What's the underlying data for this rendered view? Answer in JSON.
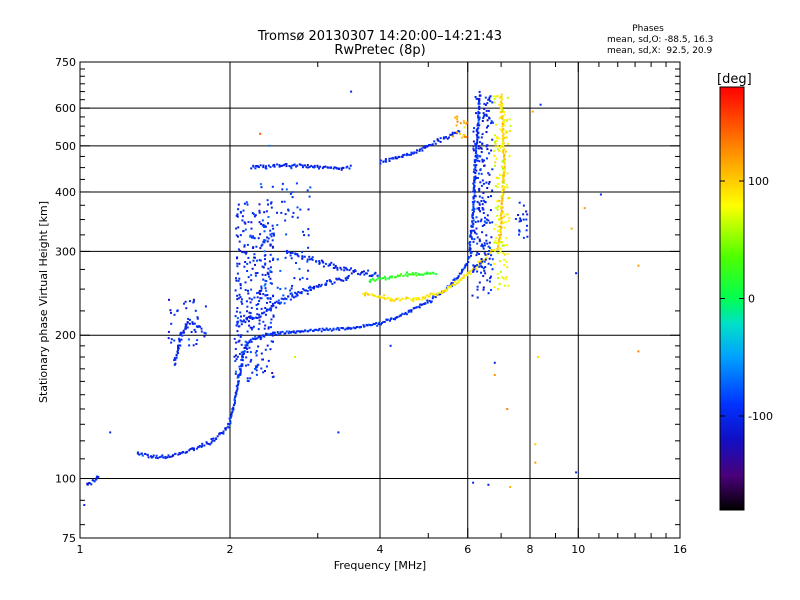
{
  "chart_data": {
    "type": "scatter",
    "title": "Tromsø 20130307 14:20:00–14:21:43",
    "subtitle": "RwPretec (8p)",
    "xlabel": "Frequency [MHz]",
    "ylabel": "Stationary phase Virtual Height [km]",
    "x_scale": "log",
    "y_scale": "log",
    "xlim": [
      1,
      16
    ],
    "ylim": [
      75,
      750
    ],
    "x_ticks": [
      1,
      2,
      4,
      6,
      8,
      10,
      16
    ],
    "y_ticks": [
      75,
      100,
      200,
      300,
      400,
      500,
      600,
      750
    ],
    "grid": true,
    "phase_info": {
      "title": "Phases",
      "line1": "mean, sd,O: -88.5, 16.3",
      "line2": "mean, sd,X:  92.5, 20.9"
    },
    "colorbar": {
      "label": "[deg]",
      "ticks": [
        100,
        0,
        -100
      ],
      "range": [
        -180,
        180
      ],
      "colormap": "rainbow"
    },
    "traces": [
      {
        "kind": "curve",
        "phase": -100,
        "jitter": 0.012,
        "points": [
          [
            1.03,
            97
          ],
          [
            1.07,
            99
          ],
          [
            1.09,
            101
          ]
        ]
      },
      {
        "kind": "curve",
        "phase": -100,
        "jitter": 0.015,
        "points": [
          [
            1.3,
            113
          ],
          [
            1.4,
            111
          ],
          [
            1.5,
            111
          ],
          [
            1.6,
            113
          ],
          [
            1.7,
            116
          ],
          [
            1.8,
            118
          ],
          [
            1.9,
            123
          ],
          [
            1.98,
            128
          ]
        ]
      },
      {
        "kind": "curve",
        "phase": -95,
        "jitter": 0.012,
        "points": [
          [
            1.98,
            128
          ],
          [
            2.03,
            140
          ],
          [
            2.08,
            160
          ],
          [
            2.13,
            185
          ],
          [
            2.2,
            195
          ],
          [
            2.35,
            200
          ],
          [
            2.6,
            203
          ],
          [
            3.0,
            205
          ],
          [
            3.5,
            207
          ],
          [
            4.0,
            212
          ],
          [
            4.5,
            222
          ],
          [
            5.0,
            235
          ],
          [
            5.5,
            252
          ],
          [
            5.8,
            270
          ],
          [
            6.0,
            285
          ],
          [
            6.1,
            300
          ]
        ]
      },
      {
        "kind": "curve",
        "phase": -100,
        "jitter": 0.02,
        "points": [
          [
            2.05,
            210
          ],
          [
            2.3,
            220
          ],
          [
            2.6,
            240
          ],
          [
            3.0,
            255
          ],
          [
            3.5,
            265
          ]
        ]
      },
      {
        "kind": "curve",
        "phase": 90,
        "jitter": 0.014,
        "points": [
          [
            3.7,
            245
          ],
          [
            4.2,
            238
          ],
          [
            4.8,
            238
          ],
          [
            5.4,
            248
          ],
          [
            5.9,
            265
          ],
          [
            6.4,
            285
          ],
          [
            6.8,
            305
          ]
        ]
      },
      {
        "kind": "curve",
        "phase": 20,
        "jitter": 0.015,
        "points": [
          [
            3.8,
            260
          ],
          [
            4.5,
            268
          ],
          [
            5.2,
            270
          ]
        ]
      },
      {
        "kind": "curve",
        "phase": -100,
        "jitter": 0.015,
        "points": [
          [
            2.2,
            450
          ],
          [
            2.5,
            455
          ],
          [
            3.2,
            450
          ],
          [
            3.5,
            448
          ]
        ]
      },
      {
        "kind": "curve",
        "phase": -100,
        "jitter": 0.015,
        "points": [
          [
            4.0,
            460
          ],
          [
            4.6,
            480
          ],
          [
            5.2,
            510
          ],
          [
            5.8,
            540
          ]
        ]
      },
      {
        "kind": "curve",
        "phase": -95,
        "jitter": 0.012,
        "points": [
          [
            6.05,
            300
          ],
          [
            6.15,
            360
          ],
          [
            6.2,
            450
          ],
          [
            6.3,
            560
          ],
          [
            6.35,
            650
          ]
        ]
      },
      {
        "kind": "curve",
        "phase": 100,
        "jitter": 0.012,
        "points": [
          [
            7.0,
            640
          ],
          [
            7.05,
            560
          ],
          [
            7.1,
            460
          ],
          [
            7.05,
            400
          ],
          [
            7.0,
            340
          ],
          [
            6.9,
            300
          ]
        ]
      },
      {
        "kind": "curve",
        "phase": -100,
        "jitter": 0.015,
        "points": [
          [
            1.55,
            175
          ],
          [
            1.6,
            200
          ],
          [
            1.65,
            215
          ],
          [
            1.75,
            205
          ]
        ]
      },
      {
        "kind": "curve",
        "phase": -100,
        "jitter": 0.02,
        "points": [
          [
            2.6,
            300
          ],
          [
            3.0,
            285
          ],
          [
            3.5,
            272
          ],
          [
            4.0,
            268
          ]
        ]
      },
      {
        "kind": "cluster",
        "phase": -100,
        "spread": 0.03,
        "count": 300,
        "x_range": [
          2.05,
          2.45
        ],
        "y_range": [
          160,
          380
        ]
      },
      {
        "kind": "cluster",
        "phase": -90,
        "spread": 0.03,
        "count": 90,
        "x_range": [
          2.3,
          2.9
        ],
        "y_range": [
          230,
          420
        ]
      },
      {
        "kind": "cluster",
        "phase": -100,
        "spread": 0.02,
        "count": 220,
        "x_range": [
          6.15,
          6.75
        ],
        "y_range": [
          240,
          640
        ]
      },
      {
        "kind": "cluster",
        "phase": 80,
        "spread": 0.02,
        "count": 140,
        "x_range": [
          6.75,
          7.3
        ],
        "y_range": [
          250,
          640
        ]
      },
      {
        "kind": "cluster",
        "phase": -100,
        "spread": 0.02,
        "count": 40,
        "x_range": [
          1.5,
          1.8
        ],
        "y_range": [
          190,
          240
        ]
      },
      {
        "kind": "cluster",
        "phase": -100,
        "spread": 0.02,
        "count": 20,
        "x_range": [
          7.5,
          7.9
        ],
        "y_range": [
          320,
          380
        ]
      },
      {
        "kind": "cluster",
        "phase": 110,
        "spread": 0.03,
        "count": 20,
        "x_range": [
          5.6,
          6.0
        ],
        "y_range": [
          520,
          580
        ]
      }
    ],
    "scatter_points": [
      {
        "x": 1.02,
        "y": 88,
        "phase": -100
      },
      {
        "x": 1.15,
        "y": 125,
        "phase": -100
      },
      {
        "x": 3.3,
        "y": 125,
        "phase": -100
      },
      {
        "x": 4.2,
        "y": 190,
        "phase": -100
      },
      {
        "x": 6.8,
        "y": 175,
        "phase": -100
      },
      {
        "x": 6.8,
        "y": 165,
        "phase": 120
      },
      {
        "x": 8.3,
        "y": 180,
        "phase": 90
      },
      {
        "x": 9.9,
        "y": 103,
        "phase": -100
      },
      {
        "x": 6.15,
        "y": 98,
        "phase": -100
      },
      {
        "x": 6.6,
        "y": 97,
        "phase": -100
      },
      {
        "x": 7.3,
        "y": 96,
        "phase": 110
      },
      {
        "x": 8.2,
        "y": 108,
        "phase": 120
      },
      {
        "x": 8.2,
        "y": 118,
        "phase": 100
      },
      {
        "x": 9.9,
        "y": 270,
        "phase": -100
      },
      {
        "x": 9.7,
        "y": 335,
        "phase": 110
      },
      {
        "x": 10.3,
        "y": 370,
        "phase": 120
      },
      {
        "x": 11.1,
        "y": 395,
        "phase": -100
      },
      {
        "x": 13.2,
        "y": 280,
        "phase": 120
      },
      {
        "x": 13.2,
        "y": 185,
        "phase": 130
      },
      {
        "x": 8.4,
        "y": 610,
        "phase": -100
      },
      {
        "x": 8.1,
        "y": 590,
        "phase": 120
      },
      {
        "x": 3.5,
        "y": 650,
        "phase": -100
      },
      {
        "x": 2.3,
        "y": 530,
        "phase": 150
      },
      {
        "x": 2.4,
        "y": 500,
        "phase": -60
      },
      {
        "x": 7.2,
        "y": 140,
        "phase": 130
      },
      {
        "x": 2.7,
        "y": 180,
        "phase": 60
      }
    ]
  }
}
